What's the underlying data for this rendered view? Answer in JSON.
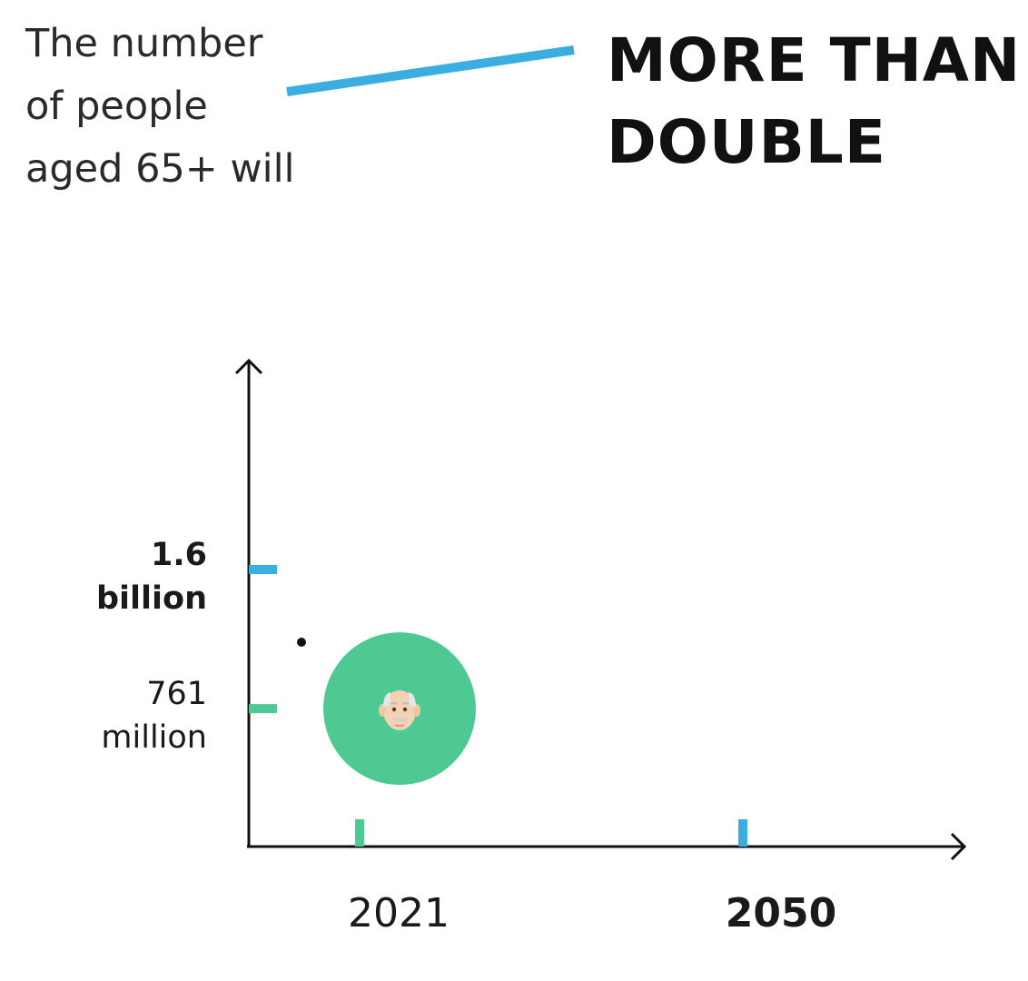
{
  "intro": {
    "line1": "The number",
    "line2": "of people",
    "line3": "aged 65+ will"
  },
  "headline": {
    "line1": "MORE THAN",
    "line2": "DOUBLE"
  },
  "colors": {
    "blue": "#3aaee0",
    "green": "#4ec993",
    "axis": "#111111"
  },
  "chart_data": {
    "type": "scatter",
    "categories": [
      "2021",
      "2050"
    ],
    "series": [
      {
        "values": [
          761,
          1600
        ]
      }
    ],
    "unit": "million",
    "y_ticks": [
      {
        "value": 1600,
        "label_line1": "1.6",
        "label_line2": "billion",
        "emphasis": true,
        "color": "blue"
      },
      {
        "value": 761,
        "label_line1": "761",
        "label_line2": "million",
        "emphasis": false,
        "color": "green"
      }
    ],
    "x_ticks": [
      {
        "label": "2021",
        "emphasis": false,
        "color": "green"
      },
      {
        "label": "2050",
        "emphasis": true,
        "color": "blue"
      }
    ],
    "current_point": {
      "category": "2021",
      "value": 761,
      "icon": "older-man-icon",
      "color": "green"
    }
  }
}
